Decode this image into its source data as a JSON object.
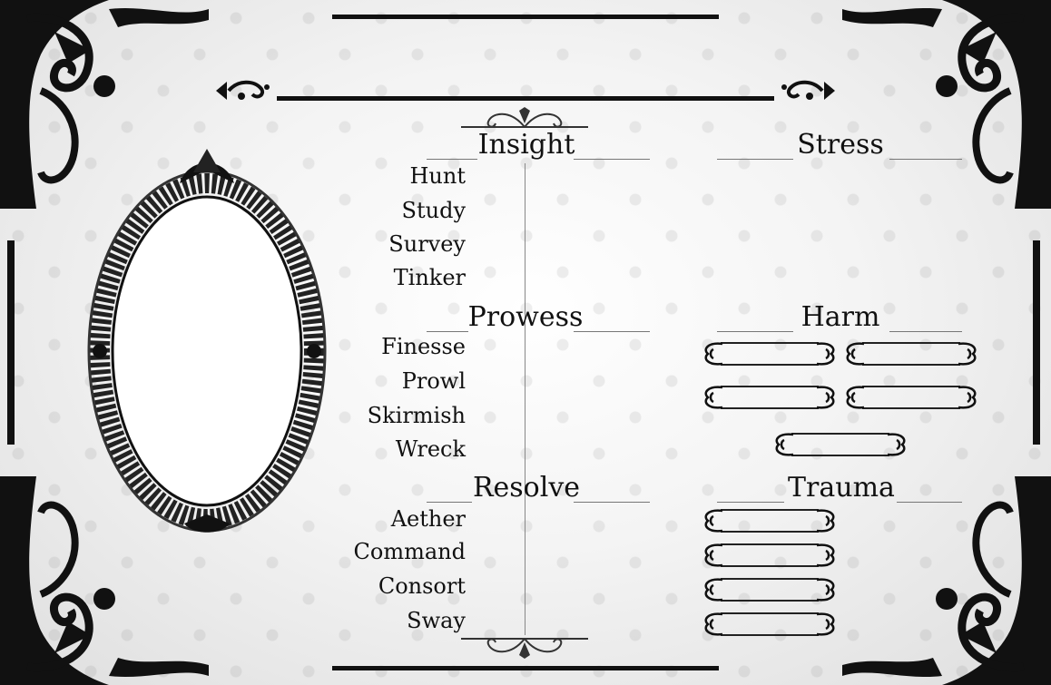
{
  "sections": {
    "insight": {
      "title": "Insight",
      "actions": [
        "Hunt",
        "Study",
        "Survey",
        "Tinker"
      ]
    },
    "prowess": {
      "title": "Prowess",
      "actions": [
        "Finesse",
        "Prowl",
        "Skirmish",
        "Wreck"
      ]
    },
    "resolve": {
      "title": "Resolve",
      "actions": [
        "Aether",
        "Command",
        "Consort",
        "Sway"
      ]
    }
  },
  "right_panel": {
    "stress_title": "Stress",
    "harm_title": "Harm",
    "trauma_title": "Trauma"
  },
  "icons": {
    "corner": "flourish-corner-icon",
    "frame": "ornate-oval-frame-icon",
    "scroll": "scroll-ornament-icon"
  }
}
